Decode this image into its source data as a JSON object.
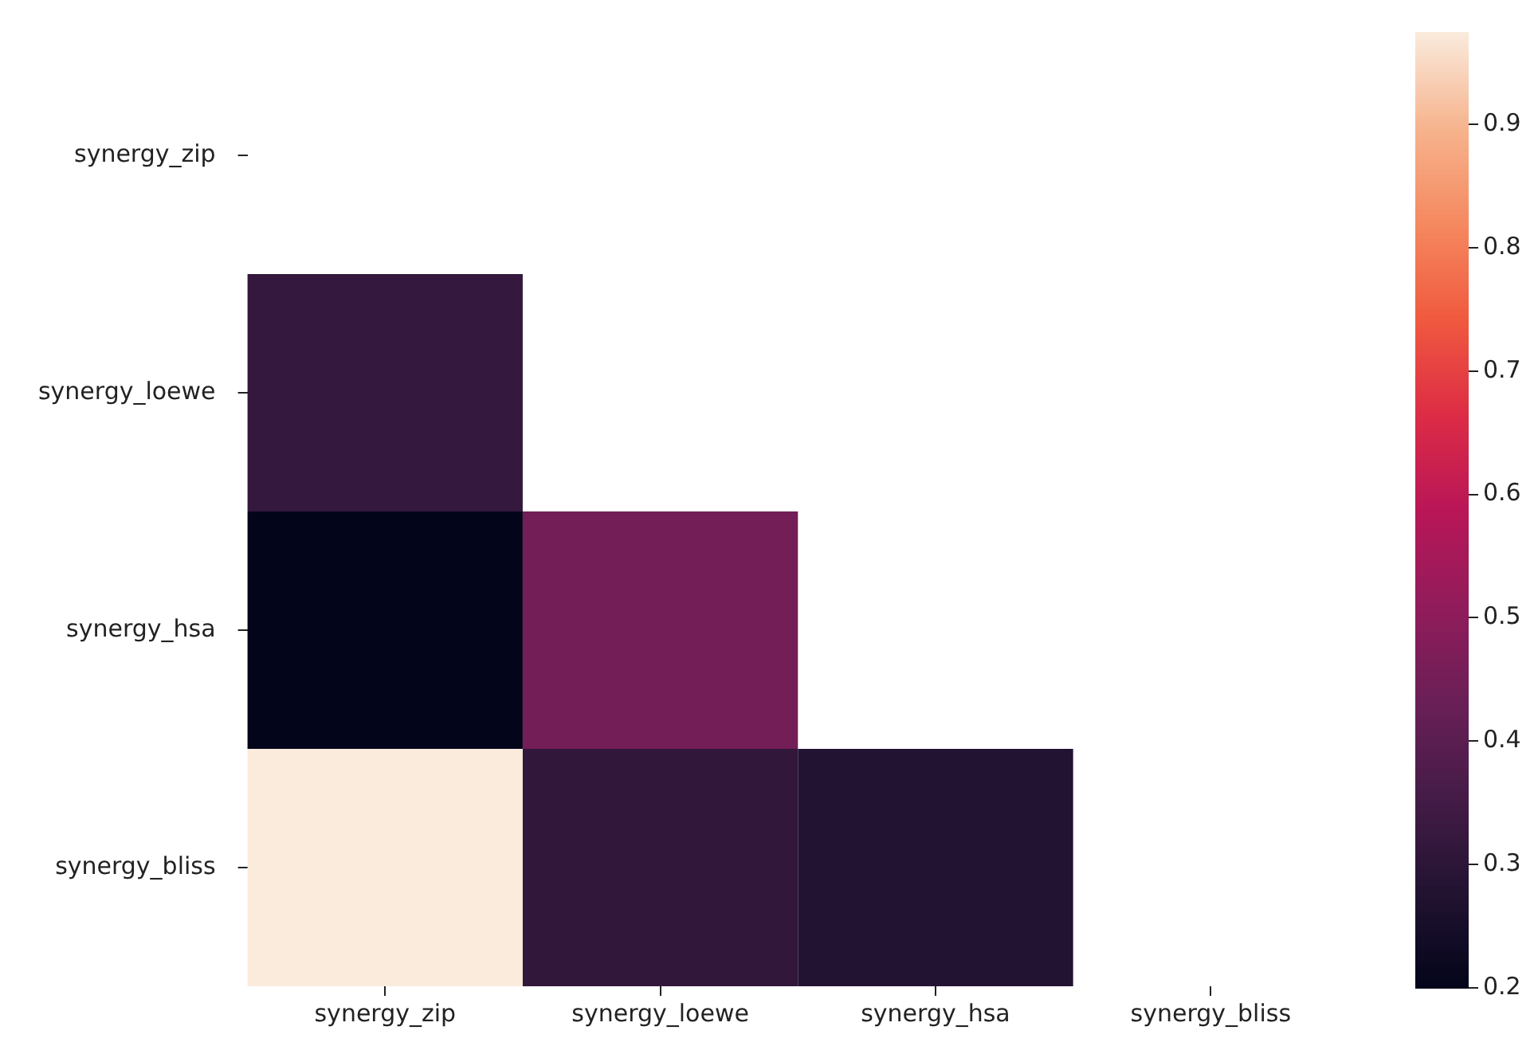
{
  "chart_data": {
    "type": "heatmap",
    "categories": [
      "synergy_zip",
      "synergy_loewe",
      "synergy_hsa",
      "synergy_bliss"
    ],
    "y_categories": [
      "synergy_zip",
      "synergy_loewe",
      "synergy_hsa",
      "synergy_bliss"
    ],
    "cells": [
      [
        null,
        null,
        null,
        null
      ],
      [
        0.32,
        null,
        null,
        null
      ],
      [
        0.2,
        0.45,
        null,
        null
      ],
      [
        0.975,
        0.31,
        0.28,
        null
      ]
    ],
    "clim": [
      0.2,
      0.975
    ],
    "cticks": [
      0.2,
      0.3,
      0.4,
      0.5,
      0.6,
      0.7,
      0.8,
      0.9
    ]
  }
}
